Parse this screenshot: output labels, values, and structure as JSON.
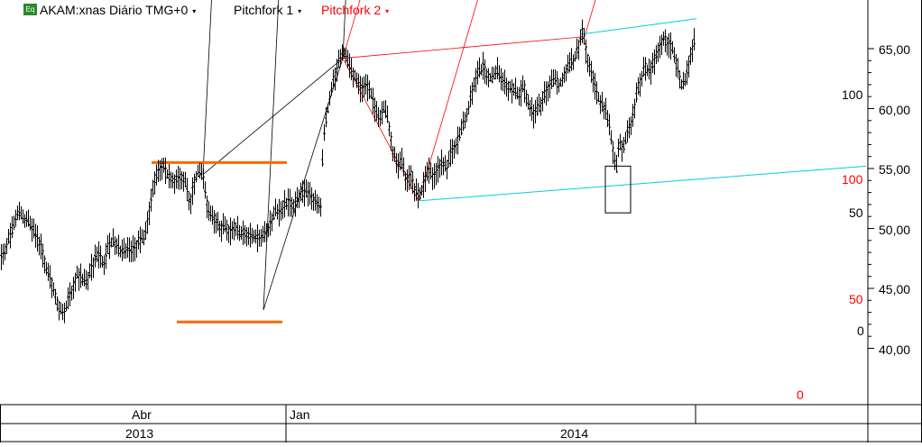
{
  "header": {
    "icon_label": "Eq",
    "title": "AKAM:xnas Diário TMG+0",
    "pitchfork1_label": "Pitchfork 1",
    "pitchfork2_label": "Pitchfork 2",
    "caret": "▾"
  },
  "colors": {
    "price": "#000000",
    "pitchfork1": "#000000",
    "pitchfork2": "#ff0000",
    "trendlines": "#00cfe0",
    "levels": "#ff6600",
    "grid": "#000000"
  },
  "chart_data": {
    "type": "ohlc",
    "ylim": [
      35,
      69
    ],
    "y_ticks": [
      "40,00",
      "45,00",
      "50,00",
      "55,00",
      "60,00",
      "65,00"
    ],
    "x_labels_top": [
      "Abr",
      "Jan"
    ],
    "x_labels_bottom": [
      "2013",
      "2014"
    ],
    "price_path": [
      [
        0,
        47.2
      ],
      [
        2,
        47.8
      ],
      [
        5,
        48.0
      ],
      [
        8,
        49.0
      ],
      [
        12,
        49.5
      ],
      [
        16,
        50.6
      ],
      [
        20,
        51.5
      ],
      [
        24,
        51.0
      ],
      [
        28,
        50.8
      ],
      [
        32,
        50.5
      ],
      [
        36,
        49.8
      ],
      [
        40,
        49.2
      ],
      [
        45,
        48.5
      ],
      [
        50,
        47.0
      ],
      [
        55,
        45.8
      ],
      [
        60,
        44.8
      ],
      [
        64,
        43.7
      ],
      [
        68,
        43.1
      ],
      [
        71,
        43.0
      ],
      [
        75,
        44.2
      ],
      [
        80,
        45.0
      ],
      [
        85,
        46.2
      ],
      [
        90,
        45.8
      ],
      [
        95,
        45.5
      ],
      [
        100,
        46.5
      ],
      [
        105,
        47.5
      ],
      [
        110,
        47.8
      ],
      [
        115,
        47.0
      ],
      [
        120,
        48.5
      ],
      [
        125,
        49.0
      ],
      [
        130,
        48.5
      ],
      [
        135,
        48.0
      ],
      [
        140,
        48.3
      ],
      [
        145,
        48.0
      ],
      [
        150,
        48.6
      ],
      [
        155,
        49.0
      ],
      [
        160,
        49.3
      ],
      [
        165,
        51.5
      ],
      [
        170,
        53.5
      ],
      [
        175,
        54.8
      ],
      [
        180,
        55.3
      ],
      [
        185,
        54.5
      ],
      [
        190,
        54.2
      ],
      [
        195,
        54.0
      ],
      [
        200,
        54.4
      ],
      [
        205,
        53.8
      ],
      [
        210,
        52.0
      ],
      [
        215,
        54.0
      ],
      [
        220,
        54.8
      ],
      [
        225,
        54.2
      ],
      [
        230,
        51.5
      ],
      [
        235,
        51.0
      ],
      [
        240,
        50.5
      ],
      [
        245,
        50.0
      ],
      [
        250,
        50.2
      ],
      [
        255,
        49.7
      ],
      [
        260,
        50.3
      ],
      [
        265,
        49.5
      ],
      [
        270,
        49.8
      ],
      [
        275,
        49.3
      ],
      [
        280,
        49.5
      ],
      [
        285,
        49.2
      ],
      [
        290,
        49.3
      ],
      [
        295,
        49.8
      ],
      [
        300,
        50.5
      ],
      [
        305,
        51.5
      ],
      [
        310,
        51.2
      ],
      [
        315,
        52.0
      ],
      [
        320,
        52.2
      ],
      [
        325,
        51.8
      ],
      [
        330,
        52.5
      ],
      [
        335,
        52.8
      ],
      [
        340,
        53.0
      ],
      [
        345,
        52.6
      ],
      [
        350,
        52.2
      ],
      [
        355,
        51.8
      ],
      [
        358,
        57.5
      ],
      [
        362,
        59.5
      ],
      [
        366,
        61.5
      ],
      [
        370,
        62.5
      ],
      [
        374,
        63.5
      ],
      [
        378,
        64.5
      ],
      [
        382,
        64.8
      ],
      [
        386,
        63.5
      ],
      [
        390,
        63.0
      ],
      [
        395,
        62.5
      ],
      [
        400,
        61.5
      ],
      [
        405,
        62.0
      ],
      [
        410,
        61.5
      ],
      [
        415,
        60.0
      ],
      [
        420,
        59.0
      ],
      [
        425,
        60.0
      ],
      [
        430,
        59.0
      ],
      [
        435,
        56.5
      ],
      [
        440,
        55.0
      ],
      [
        445,
        55.5
      ],
      [
        450,
        54.0
      ],
      [
        455,
        54.5
      ],
      [
        460,
        53.0
      ],
      [
        465,
        52.8
      ],
      [
        470,
        54.0
      ],
      [
        475,
        54.8
      ],
      [
        480,
        54.2
      ],
      [
        485,
        55.0
      ],
      [
        490,
        55.5
      ],
      [
        495,
        55.0
      ],
      [
        500,
        56.5
      ],
      [
        505,
        57.0
      ],
      [
        510,
        58.0
      ],
      [
        515,
        59.0
      ],
      [
        520,
        60.5
      ],
      [
        525,
        62.0
      ],
      [
        530,
        63.0
      ],
      [
        535,
        63.5
      ],
      [
        540,
        62.8
      ],
      [
        545,
        62.5
      ],
      [
        550,
        63.2
      ],
      [
        555,
        62.5
      ],
      [
        560,
        62.0
      ],
      [
        565,
        61.8
      ],
      [
        570,
        61.5
      ],
      [
        575,
        61.0
      ],
      [
        580,
        62.0
      ],
      [
        585,
        60.5
      ],
      [
        590,
        59.5
      ],
      [
        595,
        59.8
      ],
      [
        600,
        60.5
      ],
      [
        605,
        61.5
      ],
      [
        610,
        62.0
      ],
      [
        615,
        62.5
      ],
      [
        620,
        62.0
      ],
      [
        625,
        63.0
      ],
      [
        630,
        63.5
      ],
      [
        635,
        64.0
      ],
      [
        640,
        65.0
      ],
      [
        645,
        66.5
      ],
      [
        650,
        64.5
      ],
      [
        655,
        63.0
      ],
      [
        660,
        61.5
      ],
      [
        665,
        60.5
      ],
      [
        670,
        60.0
      ],
      [
        675,
        58.5
      ],
      [
        680,
        56.0
      ],
      [
        683,
        55.0
      ],
      [
        686,
        57.5
      ],
      [
        690,
        56.5
      ],
      [
        695,
        58.0
      ],
      [
        700,
        59.0
      ],
      [
        705,
        61.0
      ],
      [
        710,
        62.5
      ],
      [
        715,
        63.5
      ],
      [
        720,
        63.0
      ],
      [
        725,
        64.0
      ],
      [
        730,
        65.0
      ],
      [
        735,
        66.0
      ],
      [
        740,
        65.5
      ],
      [
        745,
        65.0
      ],
      [
        750,
        63.5
      ],
      [
        755,
        62.0
      ],
      [
        760,
        62.5
      ],
      [
        765,
        64.5
      ],
      [
        769,
        65.5
      ]
    ],
    "date_separators_x": [
      317,
      771
    ],
    "pitchfork1_pivots": [
      [
        292,
        43.2
      ],
      [
        380,
        64.2
      ],
      [
        225,
        54.5
      ]
    ],
    "pitchfork2_pivots": [
      [
        464,
        52.3
      ],
      [
        380,
        64.2
      ],
      [
        648,
        66.0
      ]
    ]
  },
  "annotations": {
    "pf1_right_labels": [
      "100",
      "50",
      "0"
    ],
    "pf2_right_labels": [
      "100",
      "50",
      "0"
    ],
    "orange_levels": [
      {
        "x1": 168,
        "x2": 318,
        "y": 55.5
      },
      {
        "x1": 196,
        "x2": 313,
        "y": 42.2
      }
    ],
    "cyan_lines": [
      {
        "x1": 644,
        "y1": 66.2,
        "x2": 772,
        "y2": 67.5
      },
      {
        "x1": 464,
        "y1": 52.3,
        "x2": 960,
        "y2": 55.2
      }
    ],
    "highlight_box": {
      "x1": 671,
      "y1": 55.2,
      "x2": 699,
      "y2": 51.3
    }
  }
}
